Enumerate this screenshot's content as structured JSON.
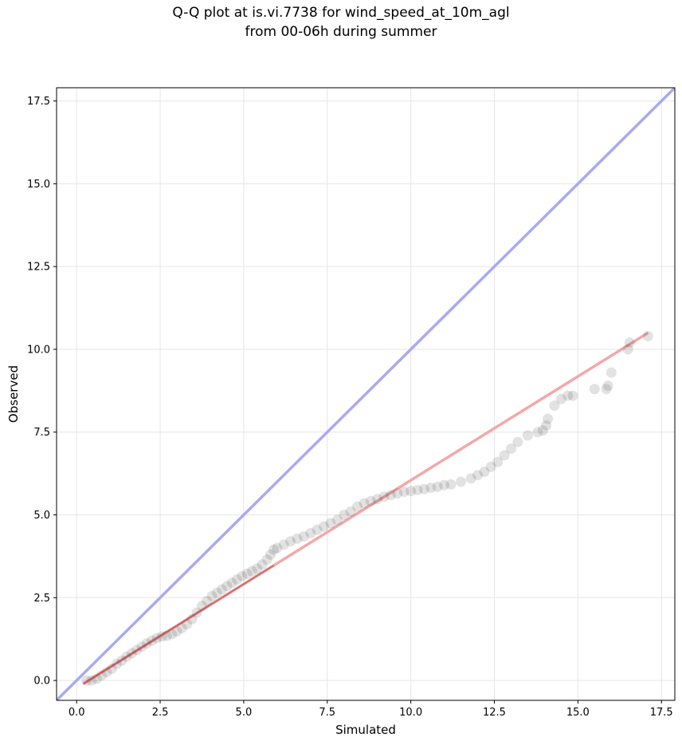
{
  "chart_data": {
    "type": "scatter",
    "title_line1": "Q-Q plot at is.vi.7738 for wind_speed_at_10m_agl",
    "title_line2": "from 00-06h during summer",
    "xlabel": "Simulated",
    "ylabel": "Observed",
    "xlim": [
      -0.6,
      17.9
    ],
    "ylim": [
      -0.6,
      17.9
    ],
    "xticks": [
      "0.0",
      "2.5",
      "5.0",
      "7.5",
      "10.0",
      "12.5",
      "15.0",
      "17.5"
    ],
    "yticks": [
      "0.0",
      "2.5",
      "5.0",
      "7.5",
      "10.0",
      "12.5",
      "15.0",
      "17.5"
    ],
    "grid": true,
    "colors": {
      "points": "#222222",
      "identity_line": "#a9aaf3",
      "fit_line": "#f4a8a8",
      "fit_line_dense": "#b23a3a"
    },
    "identity_line": {
      "x": [
        -0.6,
        17.9
      ],
      "y": [
        -0.6,
        17.9
      ]
    },
    "fit_line": {
      "x": [
        0.2,
        17.1
      ],
      "y": [
        -0.1,
        10.5
      ]
    },
    "quantiles": {
      "x": [
        0.3,
        0.45,
        0.6,
        0.75,
        0.9,
        1.05,
        1.2,
        1.35,
        1.5,
        1.65,
        1.8,
        1.95,
        2.1,
        2.25,
        2.4,
        2.55,
        2.7,
        2.85,
        3.0,
        3.15,
        3.3,
        3.45,
        3.6,
        3.75,
        3.9,
        4.05,
        4.2,
        4.35,
        4.5,
        4.65,
        4.8,
        4.95,
        5.1,
        5.25,
        5.4,
        5.55,
        5.7,
        5.8,
        5.9,
        6.0,
        6.2,
        6.4,
        6.6,
        6.8,
        7.0,
        7.2,
        7.4,
        7.6,
        7.8,
        8.0,
        8.2,
        8.4,
        8.6,
        8.8,
        9.0,
        9.2,
        9.4,
        9.6,
        9.8,
        10.0,
        10.2,
        10.4,
        10.6,
        10.8,
        11.0,
        11.2,
        11.5,
        11.8,
        12.0,
        12.2,
        12.4,
        12.6,
        12.8,
        13.0,
        13.2,
        13.5,
        13.8,
        13.95,
        14.05,
        14.1,
        14.3,
        14.5,
        14.7,
        14.85,
        15.5,
        15.85,
        15.9,
        16.0,
        16.5,
        16.55,
        17.1
      ],
      "y": [
        0.0,
        0.0,
        0.05,
        0.15,
        0.25,
        0.35,
        0.5,
        0.6,
        0.72,
        0.82,
        0.92,
        1.02,
        1.12,
        1.2,
        1.28,
        1.33,
        1.35,
        1.4,
        1.48,
        1.58,
        1.7,
        1.85,
        2.05,
        2.25,
        2.4,
        2.55,
        2.65,
        2.75,
        2.85,
        2.95,
        3.05,
        3.15,
        3.22,
        3.3,
        3.38,
        3.5,
        3.65,
        3.8,
        3.95,
        4.0,
        4.1,
        4.2,
        4.28,
        4.35,
        4.45,
        4.55,
        4.65,
        4.75,
        4.85,
        5.0,
        5.1,
        5.25,
        5.35,
        5.42,
        5.48,
        5.55,
        5.6,
        5.65,
        5.7,
        5.72,
        5.75,
        5.78,
        5.82,
        5.85,
        5.9,
        5.92,
        6.0,
        6.1,
        6.2,
        6.3,
        6.45,
        6.6,
        6.8,
        7.0,
        7.2,
        7.4,
        7.5,
        7.55,
        7.7,
        7.9,
        8.3,
        8.5,
        8.6,
        8.6,
        8.8,
        8.8,
        8.9,
        9.3,
        10.0,
        10.2,
        10.4
      ]
    }
  }
}
